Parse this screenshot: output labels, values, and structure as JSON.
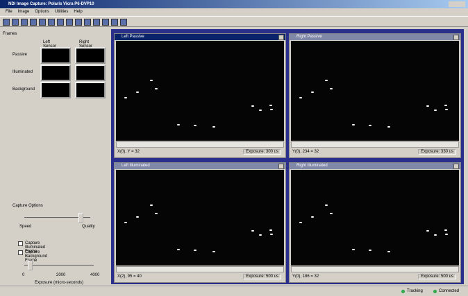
{
  "window": {
    "title": "NDI Image Capture: Polaris Vicra P6-DVP10"
  },
  "menu": [
    "File",
    "Image",
    "Options",
    "Utilities",
    "Help"
  ],
  "frames": {
    "label": "Frames",
    "columns": [
      "Left Sensor",
      "Right Sensor"
    ],
    "rows": [
      "Passive",
      "Illuminated",
      "Background"
    ]
  },
  "capture_options": {
    "label": "Capture Options",
    "speed": "Speed",
    "quality": "Quality",
    "checkboxes": [
      "Capture Illuminated Frame",
      "Capture Background Frame"
    ],
    "exposure_ticks": [
      "0",
      "2000",
      "4000"
    ],
    "exposure_label": "Exposure (micro-seconds)"
  },
  "views": [
    {
      "title": "Left Passive",
      "position": "X(0), Y = 32",
      "exposure": "Exposure: 300 us"
    },
    {
      "title": "Right Passive",
      "position": "Y(0), 234 = 32",
      "exposure": "Exposure: 330 us"
    },
    {
      "title": "Left Illuminated",
      "position": "X(2), 95 = 40",
      "exposure": "Exposure: 500 us"
    },
    {
      "title": "Right Illuminated",
      "position": "Y(0), 186 = 32",
      "exposure": "Exposure: 500 us"
    }
  ],
  "status": [
    "Tracking",
    "Connected"
  ]
}
